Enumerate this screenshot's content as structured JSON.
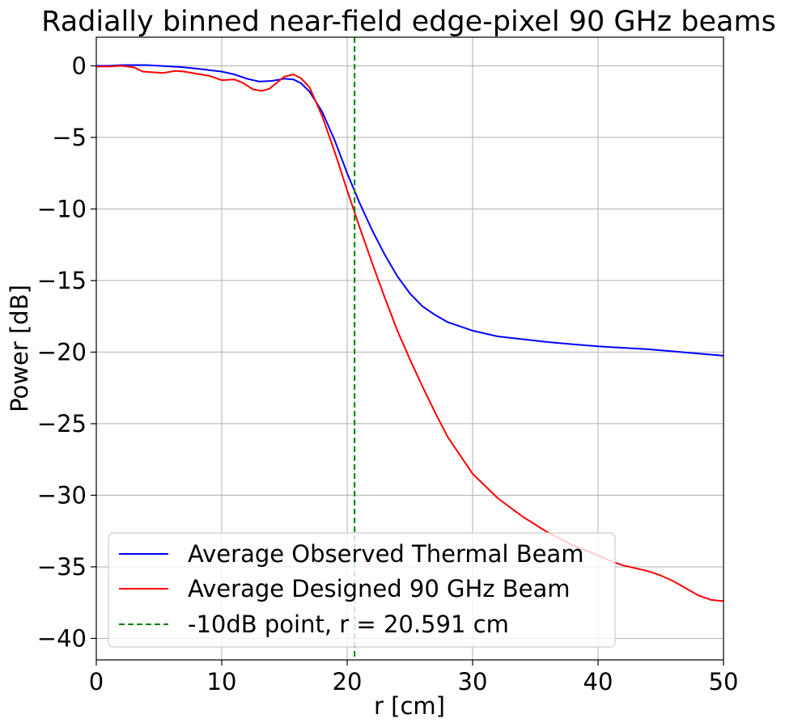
{
  "chart_data": {
    "type": "line",
    "title": "Radially binned near-field edge-pixel 90 GHz beams",
    "xlabel": "r [cm]",
    "ylabel": "Power [dB]",
    "xlim": [
      0,
      50
    ],
    "ylim": [
      -41.5,
      2.0
    ],
    "xticks": [
      0,
      10,
      20,
      30,
      40,
      50
    ],
    "yticks": [
      0,
      -5,
      -10,
      -15,
      -20,
      -25,
      -30,
      -35,
      -40
    ],
    "grid": true,
    "legend_position": "lower-left",
    "series": [
      {
        "name": "Average Observed Thermal Beam",
        "color": "#0000ff",
        "dash": "solid",
        "x": [
          0,
          1,
          2,
          3,
          4,
          5,
          6,
          7,
          8,
          9,
          10,
          11,
          12,
          13,
          14,
          15,
          15.7,
          16.3,
          17,
          18,
          19,
          20,
          21,
          22,
          23,
          24,
          25,
          26,
          27,
          28,
          29,
          30,
          32,
          34,
          36,
          38,
          40,
          42,
          44,
          46,
          48,
          50
        ],
        "y": [
          0,
          0,
          0.05,
          0.05,
          0.05,
          0,
          -0.05,
          -0.1,
          -0.2,
          -0.3,
          -0.4,
          -0.6,
          -0.9,
          -1.1,
          -1.05,
          -0.9,
          -0.95,
          -1.2,
          -1.8,
          -3.2,
          -5.2,
          -7.5,
          -9.6,
          -11.5,
          -13.2,
          -14.7,
          -15.9,
          -16.8,
          -17.4,
          -17.9,
          -18.2,
          -18.5,
          -18.9,
          -19.1,
          -19.3,
          -19.45,
          -19.6,
          -19.7,
          -19.8,
          -19.95,
          -20.1,
          -20.25
        ]
      },
      {
        "name": "Average Designed 90 GHz Beam",
        "color": "#ff0000",
        "dash": "solid",
        "x": [
          0,
          1,
          2,
          3,
          3.7,
          5.3,
          6.3,
          7,
          9,
          10,
          11,
          11.7,
          12.5,
          13.2,
          13.8,
          14.5,
          15,
          15.7,
          16.3,
          17,
          18,
          19,
          20,
          21,
          22,
          23,
          24,
          25,
          26,
          27,
          28,
          30,
          32,
          34,
          36,
          38,
          40,
          41,
          42,
          43,
          44,
          45,
          45.5,
          46,
          47,
          48,
          49,
          50
        ],
        "y": [
          -0.05,
          -0.05,
          0,
          -0.1,
          -0.4,
          -0.5,
          -0.35,
          -0.4,
          -0.7,
          -1.0,
          -0.95,
          -1.2,
          -1.65,
          -1.75,
          -1.6,
          -1.1,
          -0.75,
          -0.6,
          -0.85,
          -1.5,
          -3.5,
          -6.0,
          -8.7,
          -11.3,
          -13.8,
          -16.2,
          -18.5,
          -20.5,
          -22.4,
          -24.2,
          -25.9,
          -28.5,
          -30.2,
          -31.5,
          -32.6,
          -33.5,
          -34.2,
          -34.6,
          -34.9,
          -35.1,
          -35.3,
          -35.6,
          -35.8,
          -36.0,
          -36.5,
          -37.0,
          -37.3,
          -37.4
        ]
      },
      {
        "name": "-10dB point, r = 20.591 cm",
        "color": "#008000",
        "dash": "dashed",
        "vertical_x": 20.591
      }
    ]
  }
}
